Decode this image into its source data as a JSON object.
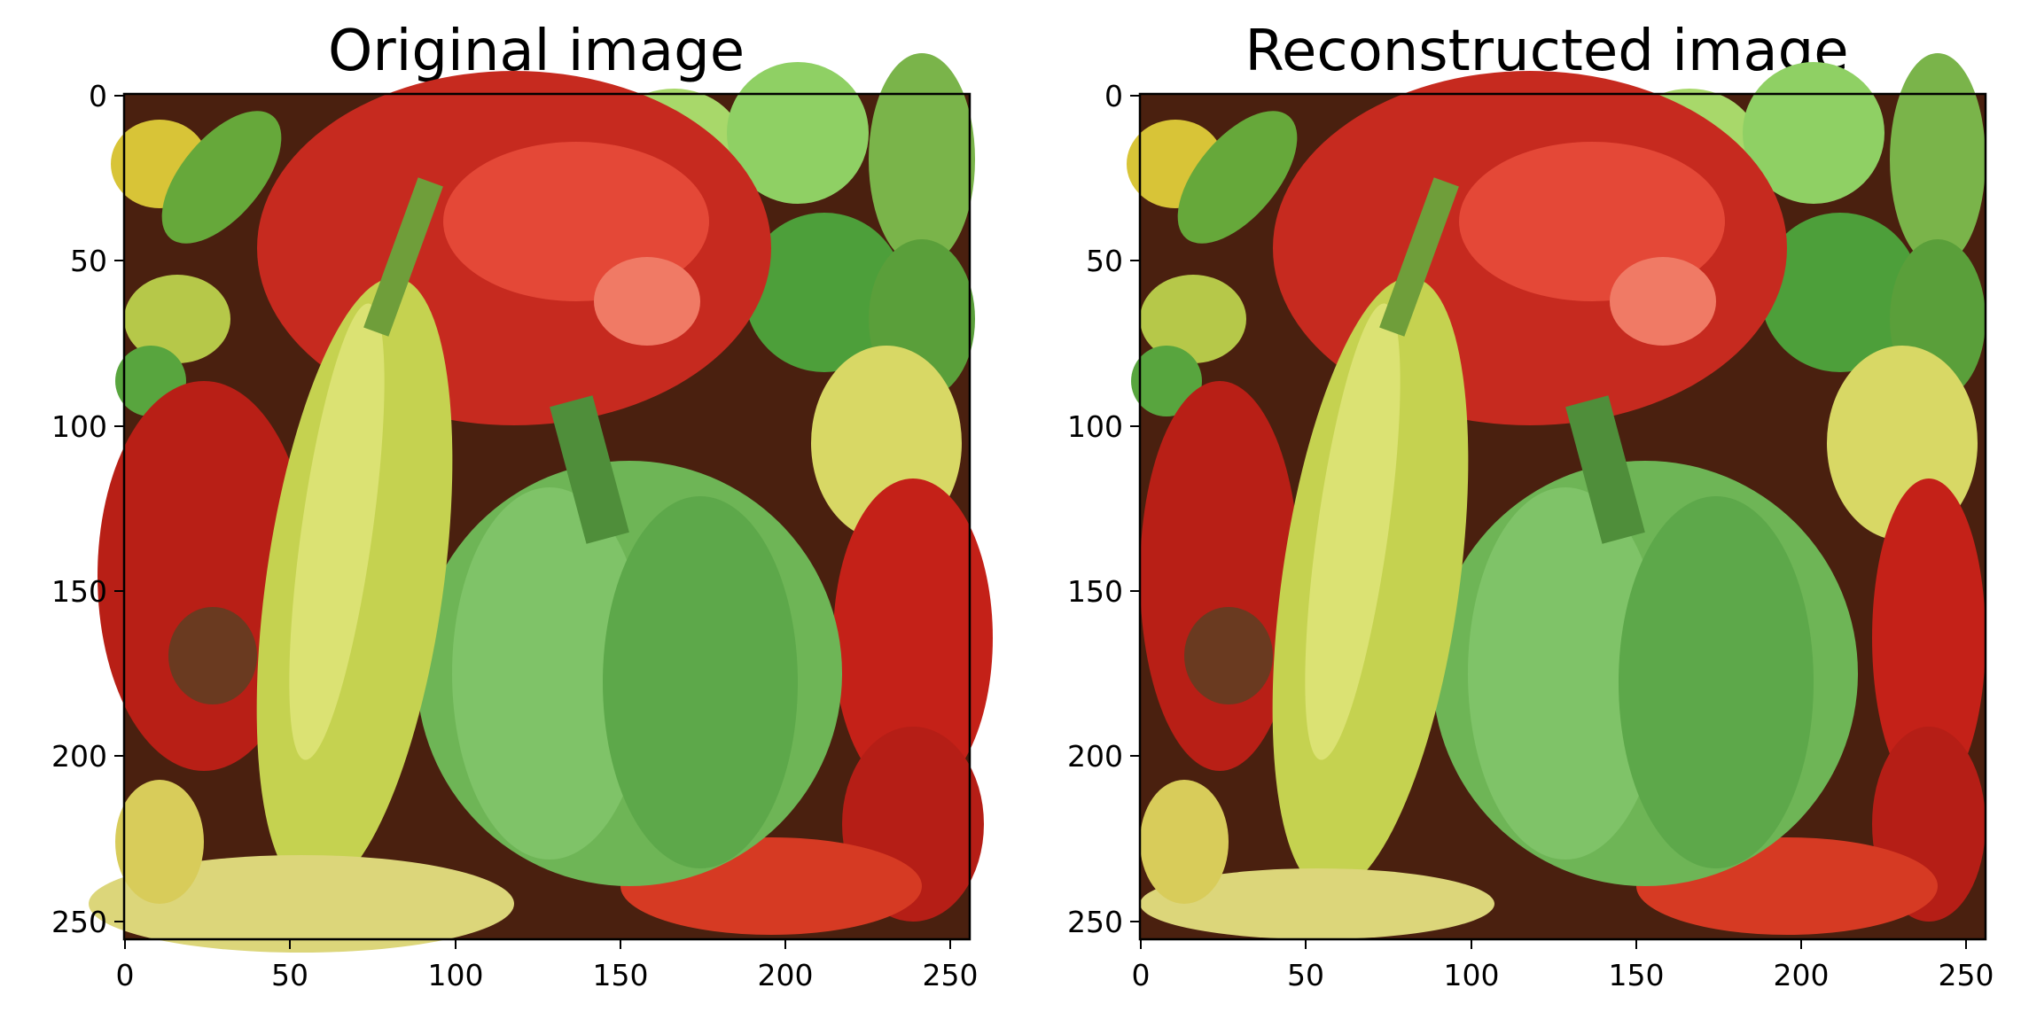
{
  "figure": {
    "panels": [
      {
        "title": "Original image",
        "image_alt": "Photograph of red, green and yellow peppers",
        "x_ticks": [
          "0",
          "50",
          "100",
          "150",
          "200",
          "250"
        ],
        "y_ticks": [
          "0",
          "50",
          "100",
          "150",
          "200",
          "250"
        ]
      },
      {
        "title": "Reconstructed image",
        "image_alt": "Reconstructed photograph of red, green and yellow peppers",
        "x_ticks": [
          "0",
          "50",
          "100",
          "150",
          "200",
          "250"
        ],
        "y_ticks": [
          "0",
          "50",
          "100",
          "150",
          "200",
          "250"
        ]
      }
    ],
    "image_extent": {
      "x": [
        0,
        256
      ],
      "y": [
        0,
        256
      ]
    },
    "tick_values": [
      0,
      50,
      100,
      150,
      200,
      250
    ],
    "colors": {
      "red_pepper": "#c8241c",
      "green_pepper": "#6fb24f",
      "yellow_pepper": "#cfd84a",
      "dark_background": "#3a1a0c"
    }
  }
}
